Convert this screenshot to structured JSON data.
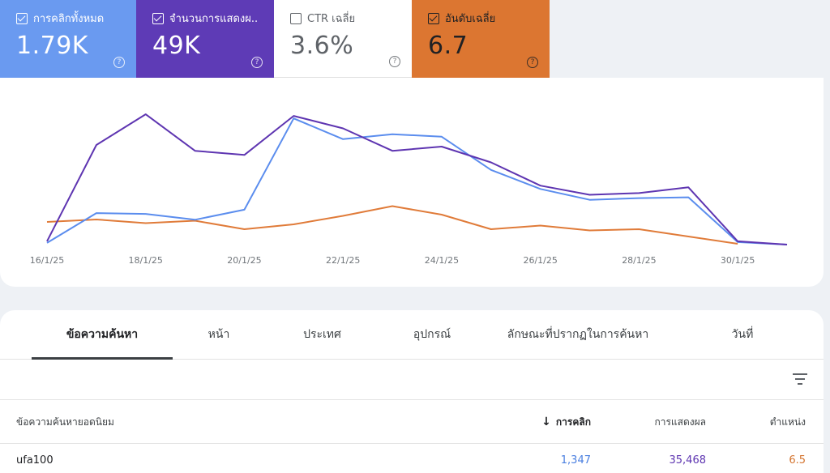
{
  "metrics": [
    {
      "label": "การคลิกทั้งหมด",
      "value": "1.79K",
      "checked": true
    },
    {
      "label": "จำนวนการแสดงผ...",
      "value": "49K",
      "checked": true
    },
    {
      "label": "CTR เฉลี่ย",
      "value": "3.6%",
      "checked": false
    },
    {
      "label": "อันดับเฉลี่ย",
      "value": "6.7",
      "checked": true
    }
  ],
  "help_glyph": "?",
  "colors": {
    "clicks": "#5b8dee",
    "impressions": "#5e35b1",
    "position": "#e07b39"
  },
  "chart_data": {
    "type": "line",
    "x": [
      "16/1/25",
      "17/1/25",
      "18/1/25",
      "19/1/25",
      "20/1/25",
      "21/1/25",
      "22/1/25",
      "23/1/25",
      "24/1/25",
      "25/1/25",
      "26/1/25",
      "27/1/25",
      "28/1/25",
      "29/1/25",
      "30/1/25",
      "31/1/25"
    ],
    "x_tick_labels": [
      "16/1/25",
      "18/1/25",
      "20/1/25",
      "22/1/25",
      "24/1/25",
      "26/1/25",
      "28/1/25",
      "30/1/25"
    ],
    "series": [
      {
        "key": "clicks",
        "values": [
          2,
          38,
          37,
          30,
          42,
          152,
          127,
          133,
          130,
          90,
          67,
          54,
          56,
          57,
          3,
          0
        ]
      },
      {
        "key": "impressions",
        "values": [
          4,
          120,
          157,
          113,
          108,
          155,
          140,
          113,
          118,
          99,
          71,
          60,
          62,
          69,
          4,
          0
        ]
      },
      {
        "key": "position",
        "values": [
          8.2,
          8.0,
          8.3,
          8.1,
          8.8,
          8.4,
          7.7,
          6.9,
          7.6,
          8.8,
          8.5,
          8.9,
          8.8,
          9.4,
          10.0,
          null
        ]
      }
    ]
  },
  "tabs": [
    "ข้อความค้นหา",
    "หน้า",
    "ประเทศ",
    "อุปกรณ์",
    "ลักษณะที่ปรากฏในการค้นหา",
    "วันที่"
  ],
  "table": {
    "headers": {
      "query": "ข้อความค้นหายอดนิยม",
      "clicks": "การคลิก",
      "impressions": "การแสดงผล",
      "position": "ตำแหน่ง"
    },
    "sort_arrow": "↓",
    "rows": [
      {
        "query": "ufa100",
        "clicks": "1,347",
        "impressions": "35,468",
        "position": "6.5"
      }
    ]
  }
}
